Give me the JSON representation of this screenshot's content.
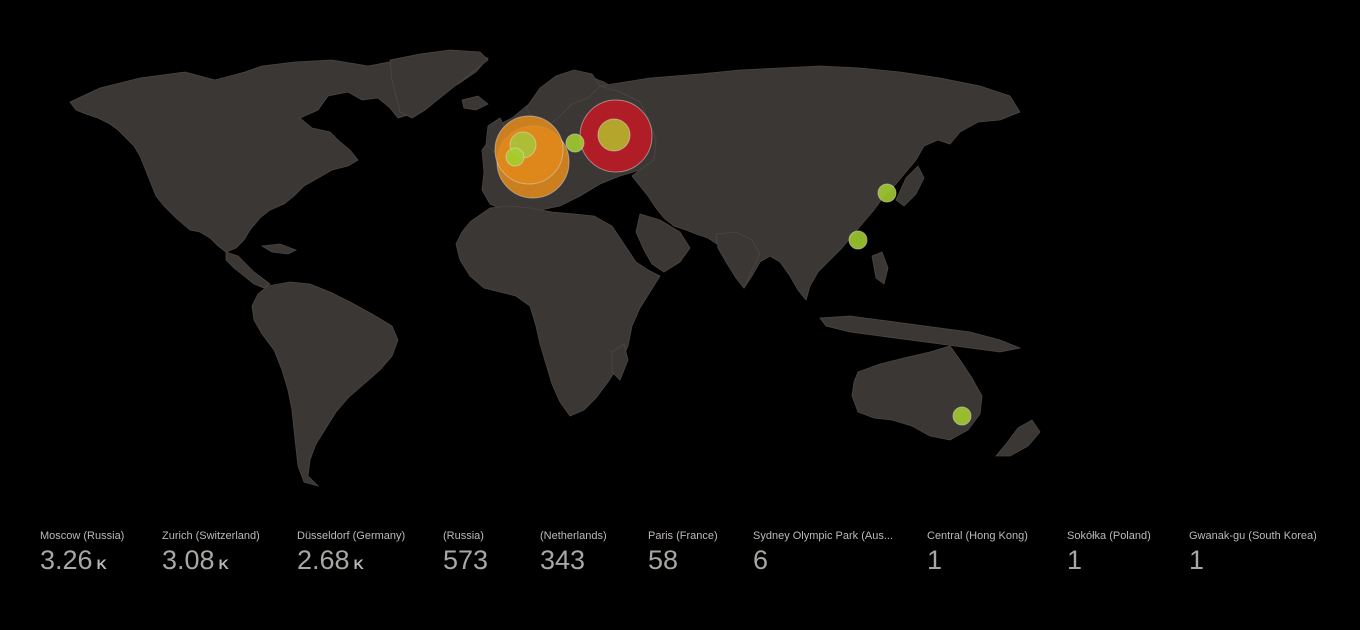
{
  "bubbles": [
    {
      "name": "germany-bubble",
      "color": "#e08a1c",
      "inner_color": "#a7c33a"
    },
    {
      "name": "switzerland-bubble",
      "color": "#e08a1c",
      "inner_color": "#a7c33a"
    },
    {
      "name": "moscow-bubble",
      "color": "#c21a24",
      "inner_color": "#b5b52e"
    },
    {
      "name": "poland-bubble",
      "color": "#a4cf2f"
    },
    {
      "name": "south-korea-bubble",
      "color": "#a4cf2f"
    },
    {
      "name": "hong-kong-bubble",
      "color": "#a4cf2f"
    },
    {
      "name": "sydney-bubble",
      "color": "#a4cf2f"
    }
  ],
  "legend": [
    {
      "label": "Moscow (Russia)",
      "value": "3.26",
      "unit": "K"
    },
    {
      "label": "Zurich (Switzerland)",
      "value": "3.08",
      "unit": "K"
    },
    {
      "label": "Düsseldorf (Germany)",
      "value": "2.68",
      "unit": "K"
    },
    {
      "label": "(Russia)",
      "value": "573",
      "unit": ""
    },
    {
      "label": "(Netherlands)",
      "value": "343",
      "unit": ""
    },
    {
      "label": "Paris (France)",
      "value": "58",
      "unit": ""
    },
    {
      "label": "Sydney Olympic Park (Aus...",
      "value": "6",
      "unit": ""
    },
    {
      "label": "Central (Hong Kong)",
      "value": "1",
      "unit": ""
    },
    {
      "label": "Sokółka (Poland)",
      "value": "1",
      "unit": ""
    },
    {
      "label": "Gwanak-gu (South Korea)",
      "value": "1",
      "unit": ""
    }
  ]
}
